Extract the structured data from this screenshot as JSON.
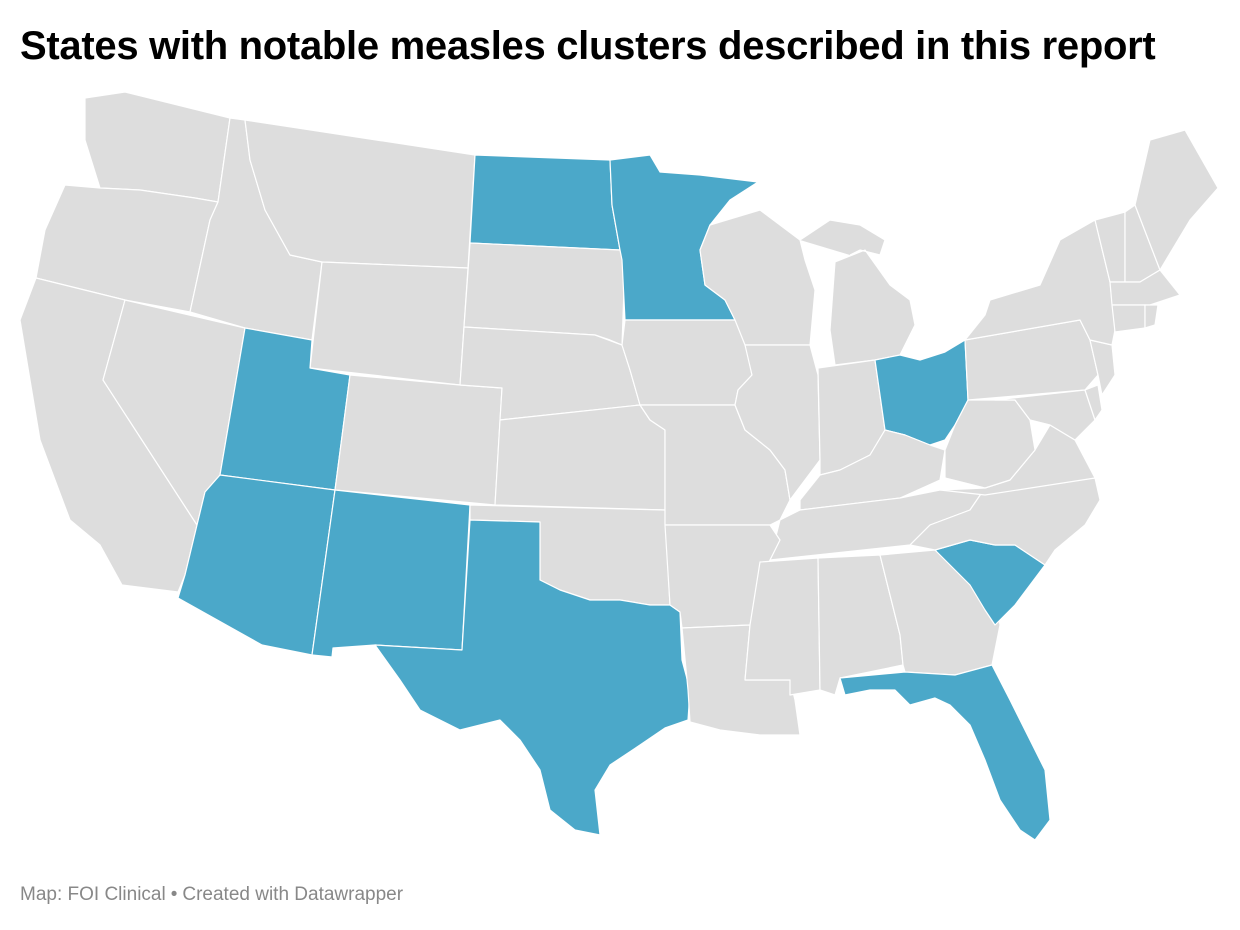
{
  "title": "States with notable measles clusters described in this report",
  "footer": {
    "source": "Map: FOI Clinical",
    "separator": "•",
    "credit": "Created with Datawrapper"
  },
  "colors": {
    "highlight": "#4ba8c9",
    "base": "#dddddd",
    "border": "#ffffff",
    "footer_text": "#888888"
  },
  "map_data": {
    "type": "choropleth",
    "region": "United States (contiguous)",
    "highlighted_states": [
      "North Dakota",
      "Minnesota",
      "Utah",
      "Arizona",
      "New Mexico",
      "Texas",
      "Ohio",
      "South Carolina",
      "Florida"
    ]
  }
}
